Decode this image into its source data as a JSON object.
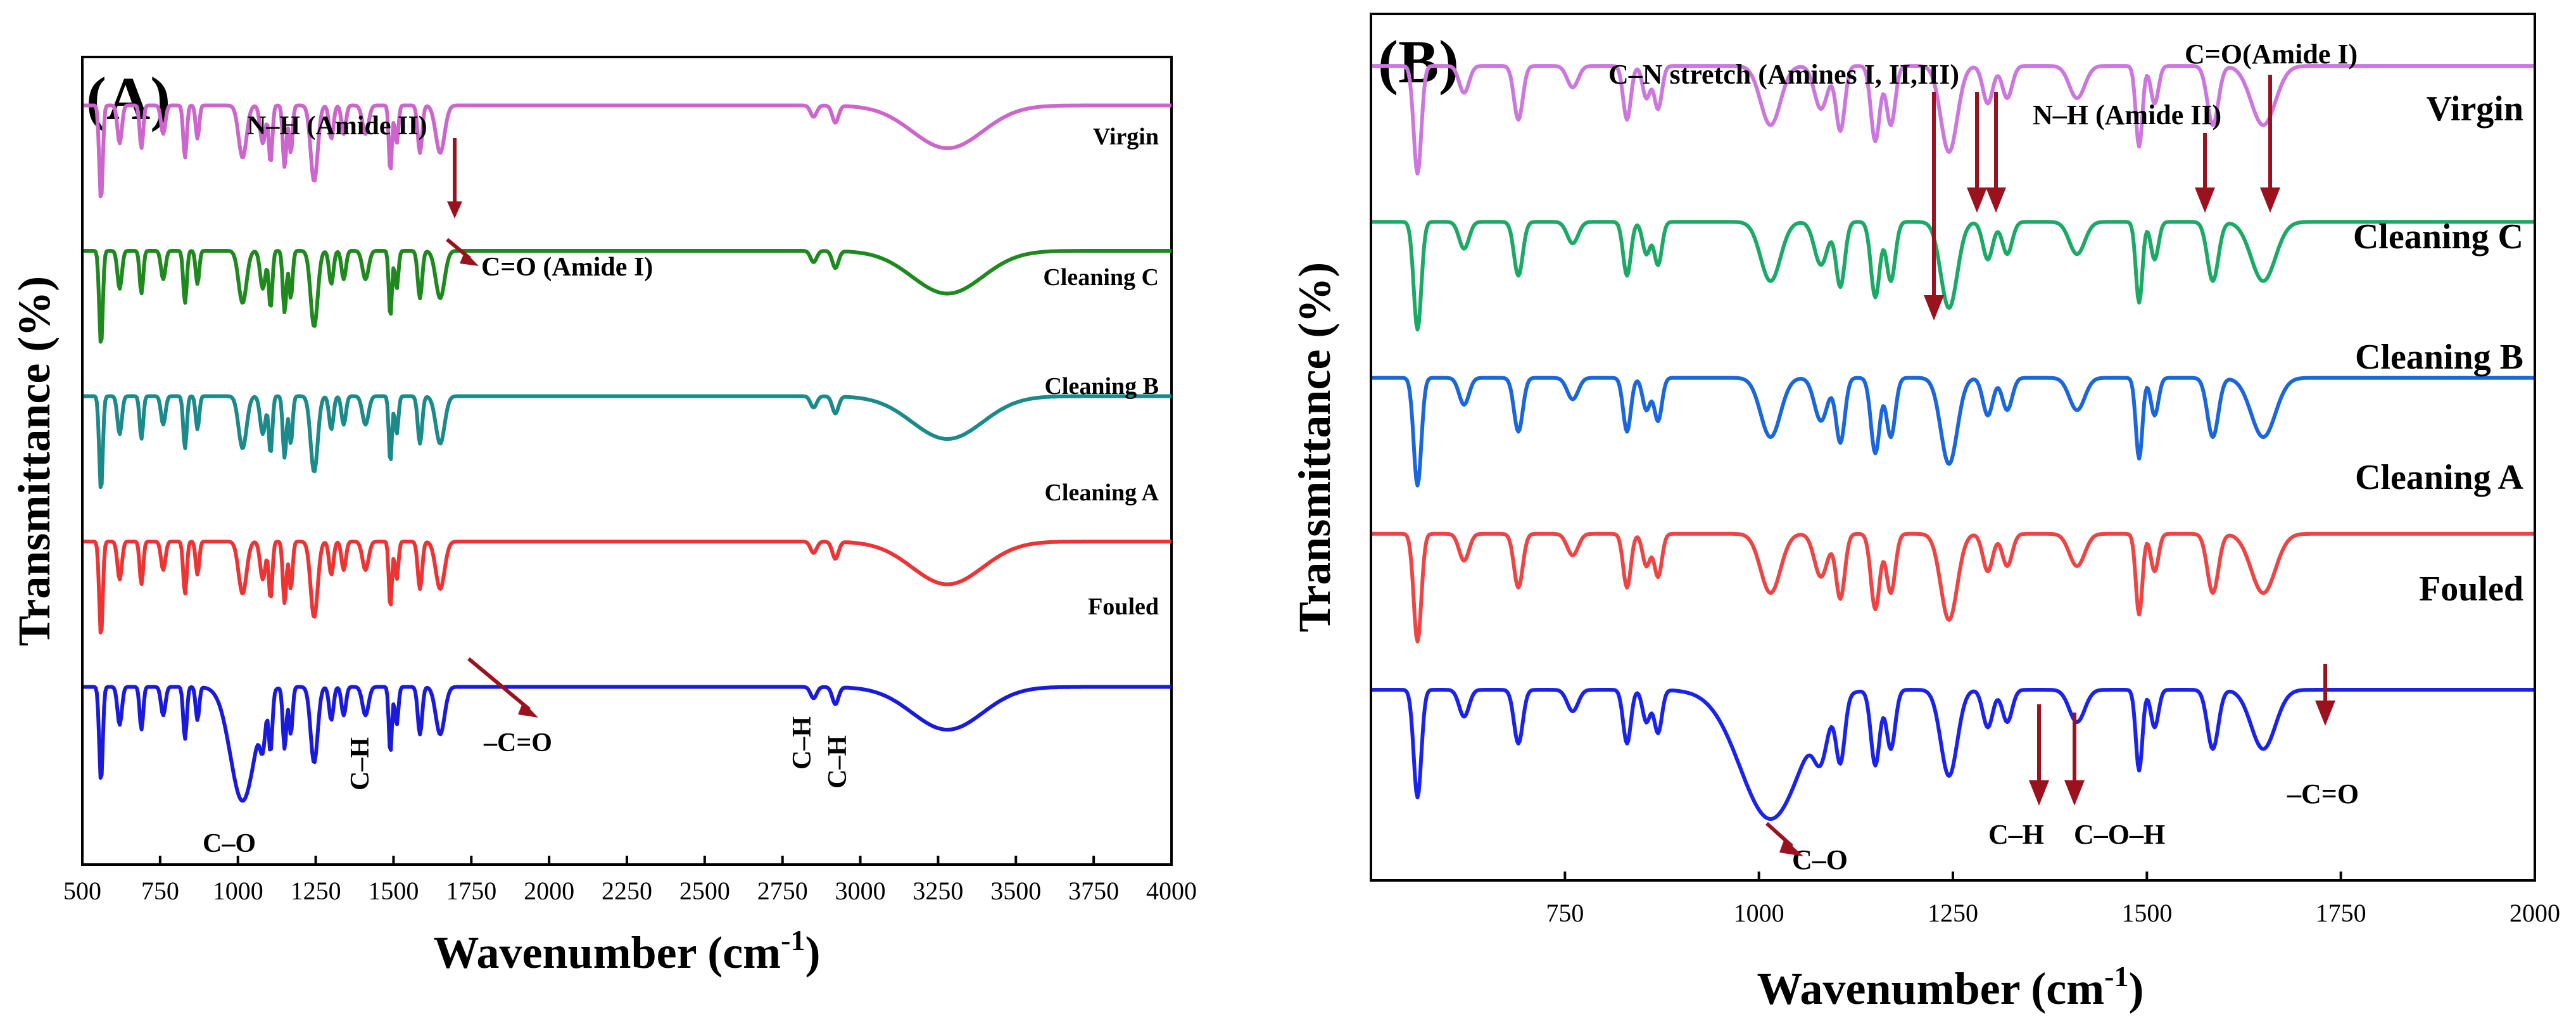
{
  "chart_data": [
    {
      "type": "line",
      "panel_label": "(A)",
      "xlabel": "Wavenumber (cm",
      "xlabel_sup": "-1",
      "xlabel_close": ")",
      "ylabel": "Transmittance (%)",
      "xlim": [
        500,
        4000
      ],
      "ylim": [
        0,
        1
      ],
      "ticks": [
        "500",
        "750",
        "1000",
        "1250",
        "1500",
        "1750",
        "2000",
        "2250",
        "2500",
        "2750",
        "3000",
        "3250",
        "3500",
        "3750",
        "4000"
      ],
      "tick_values": [
        500,
        750,
        1000,
        1250,
        1500,
        1750,
        2000,
        2250,
        2500,
        2750,
        3000,
        3250,
        3500,
        3750,
        4000
      ],
      "series": [
        {
          "name": "Virgin",
          "color": "#cc66cc",
          "offset": 0.82
        },
        {
          "name": "Cleaning C",
          "color": "#1e8a1e",
          "offset": 0.64
        },
        {
          "name": "Cleaning B",
          "color": "#1a8a8a",
          "offset": 0.46
        },
        {
          "name": "Cleaning A",
          "color": "#ee3333",
          "offset": 0.28
        },
        {
          "name": "Fouled",
          "color": "#1a1add",
          "offset": 0.1
        }
      ],
      "annotations": [
        {
          "text": "N–H (Amide II)",
          "x": 1550
        },
        {
          "text": "C=O (Amide I)",
          "x": 1650
        },
        {
          "text": "C–O",
          "x": 1020
        },
        {
          "text": "C–H",
          "x": 1400
        },
        {
          "text": "–C=O",
          "x": 1740
        },
        {
          "text": "C–H",
          "x": 2850
        },
        {
          "text": "C–H",
          "x": 2920
        }
      ]
    },
    {
      "type": "line",
      "panel_label": "(B)",
      "xlabel": "Wavenumber (cm",
      "xlabel_sup": "-1",
      "xlabel_close": ")",
      "ylabel": "Transmittance (%)",
      "xlim": [
        500,
        2000
      ],
      "ylim": [
        0,
        1
      ],
      "ticks": [
        "750",
        "1000",
        "1250",
        "1500",
        "1750",
        "2000"
      ],
      "tick_values": [
        750,
        1000,
        1250,
        1500,
        1750,
        2000
      ],
      "series": [
        {
          "name": "Virgin",
          "color": "#cc77dd",
          "offset": 0.82
        },
        {
          "name": "Cleaning C",
          "color": "#1aaa66",
          "offset": 0.64
        },
        {
          "name": "Cleaning B",
          "color": "#1a66dd",
          "offset": 0.46
        },
        {
          "name": "Cleaning A",
          "color": "#ee4444",
          "offset": 0.28
        },
        {
          "name": "Fouled",
          "color": "#1a22ee",
          "offset": 0.1
        }
      ],
      "annotations": [
        {
          "text": "C–N stretch (Amines I, II,III)",
          "x": 1245
        },
        {
          "text": "N–H (Amide II)",
          "x": 1585
        },
        {
          "text": "C=O(Amide I)",
          "x": 1665
        },
        {
          "text": "C–O",
          "x": 1040
        },
        {
          "text": "C–H",
          "x": 1375
        },
        {
          "text": "C–O–H",
          "x": 1420
        },
        {
          "text": "–C=O",
          "x": 1740
        }
      ]
    }
  ]
}
